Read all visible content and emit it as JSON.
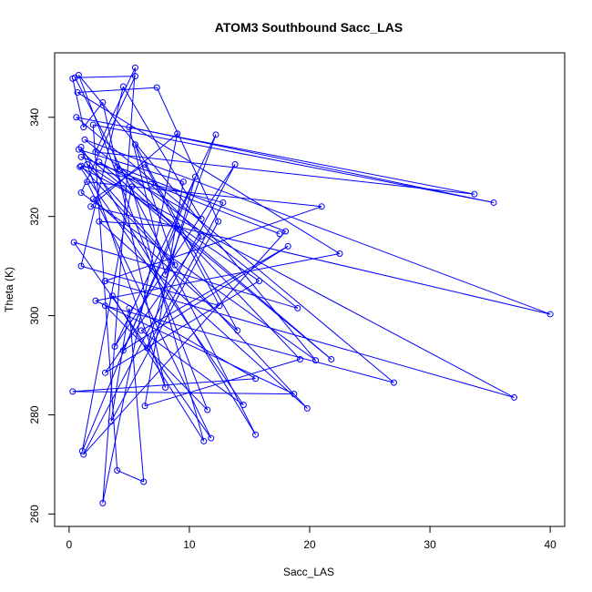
{
  "chart_data": {
    "type": "line",
    "title": "ATOM3 Southbound Sacc_LAS",
    "xlabel": "Sacc_LAS",
    "ylabel": "Theta (K)",
    "xlim": [
      -1.2,
      41.2
    ],
    "ylim": [
      257.5,
      353.0
    ],
    "xticks": [
      0,
      10,
      20,
      30,
      40
    ],
    "yticks": [
      260,
      280,
      300,
      320,
      340
    ],
    "grid": false,
    "legend": "none",
    "color": "#0000ff",
    "marker": "open-circle",
    "series": [
      {
        "points": [
          [
            0.3,
            347.8
          ],
          [
            1.2,
            338.0
          ],
          [
            2.8,
            343.0
          ],
          [
            8.0,
            285.5
          ],
          [
            1.0,
            334.0
          ],
          [
            15.5,
            276.0
          ],
          [
            0.5,
            348.0
          ],
          [
            5.5,
            348.3
          ],
          [
            1.0,
            324.8
          ],
          [
            20.5,
            291.0
          ],
          [
            0.8,
            348.5
          ],
          [
            11.5,
            281.0
          ],
          [
            3.0,
            302.0
          ],
          [
            27.0,
            286.5
          ],
          [
            0.6,
            340.0
          ],
          [
            33.7,
            324.5
          ],
          [
            2.2,
            333.0
          ],
          [
            5.5,
            350.0
          ],
          [
            2.8,
            262.2
          ],
          [
            9.0,
            336.7
          ],
          [
            1.8,
            322.0
          ],
          [
            40.0,
            300.3
          ],
          [
            1.3,
            335.5
          ],
          [
            19.0,
            301.5
          ],
          [
            0.4,
            314.8
          ],
          [
            11.8,
            275.3
          ],
          [
            1.5,
            327.0
          ],
          [
            21.0,
            322.0
          ],
          [
            3.0,
            307.0
          ],
          [
            37.0,
            283.5
          ],
          [
            0.9,
            330.0
          ],
          [
            14.5,
            282.0
          ],
          [
            6.0,
            297.0
          ],
          [
            18.2,
            314.0
          ],
          [
            4.5,
            293.0
          ],
          [
            9.0,
            318.0
          ],
          [
            2.5,
            319.0
          ],
          [
            19.8,
            281.3
          ],
          [
            1.0,
            330.2
          ],
          [
            12.8,
            322.8
          ],
          [
            6.5,
            293.5
          ],
          [
            10.5,
            328.0
          ],
          [
            1.1,
            272.7
          ],
          [
            5.2,
            326.0
          ],
          [
            11.2,
            274.7
          ],
          [
            3.6,
            304.0
          ],
          [
            15.5,
            287.3
          ],
          [
            0.3,
            284.7
          ],
          [
            18.7,
            284.2
          ],
          [
            2.2,
            303.0
          ],
          [
            22.5,
            312.5
          ],
          [
            0.7,
            345.0
          ],
          [
            7.3,
            346.0
          ],
          [
            12.4,
            319.0
          ],
          [
            3.5,
            278.7
          ],
          [
            5.0,
            301.5
          ],
          [
            6.2,
            266.5
          ],
          [
            4.0,
            268.8
          ],
          [
            2.0,
            338.5
          ],
          [
            35.3,
            322.8
          ],
          [
            5.0,
            338.0
          ],
          [
            8.0,
            308.3
          ],
          [
            12.2,
            336.5
          ],
          [
            3.8,
            293.8
          ],
          [
            13.8,
            330.5
          ],
          [
            1.2,
            272.0
          ],
          [
            18.0,
            317.0
          ],
          [
            4.0,
            330.0
          ],
          [
            19.2,
            291.2
          ],
          [
            6.3,
            281.8
          ],
          [
            9.5,
            327.0
          ],
          [
            0.8,
            333.5
          ],
          [
            21.8,
            291.2
          ],
          [
            2.5,
            331.0
          ],
          [
            11.0,
            319.5
          ],
          [
            4.5,
            346.2
          ],
          [
            1.0,
            310.0
          ],
          [
            12.5,
            302.0
          ],
          [
            6.3,
            330.5
          ],
          [
            2.0,
            323.5
          ],
          [
            14.0,
            297.0
          ],
          [
            5.5,
            334.5
          ],
          [
            8.8,
            310.2
          ],
          [
            1.5,
            330.5
          ],
          [
            15.8,
            307.0
          ],
          [
            3.0,
            288.5
          ],
          [
            11.0,
            316.0
          ],
          [
            6.8,
            326.5
          ],
          [
            1.0,
            332.0
          ],
          [
            17.5,
            316.5
          ]
        ]
      }
    ]
  }
}
